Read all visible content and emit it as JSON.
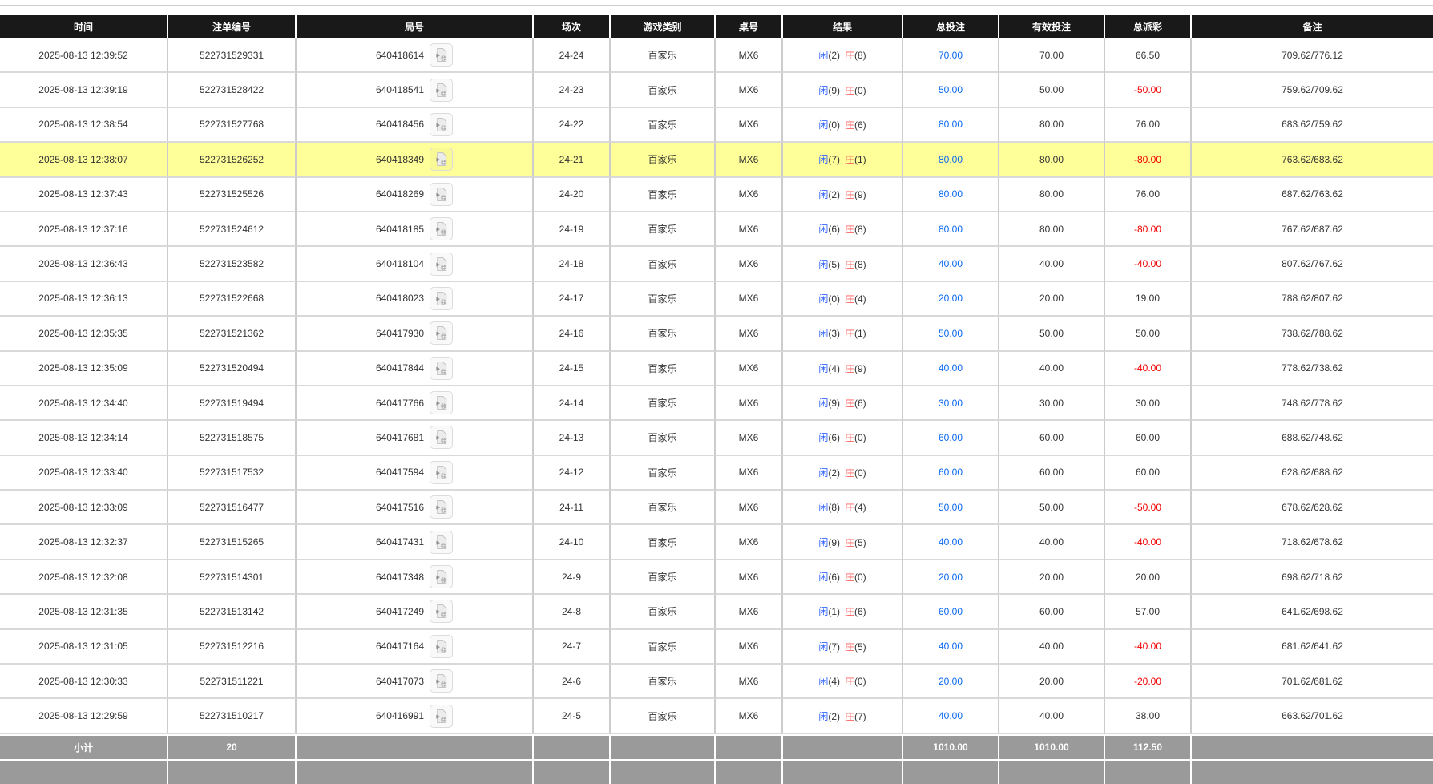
{
  "colors": {
    "header_bg": "#191919",
    "highlight_row_bg": "#ffff99",
    "subtotal_bg": "#9a9a9a",
    "bet_amount_blue": "#0a68f0",
    "player_label_blue": "#3366ff",
    "banker_label_red": "#ff5f5f",
    "negative_payout_red": "#f20000"
  },
  "icons": {
    "round_replay": "video-file-icon"
  },
  "table": {
    "columns": [
      {
        "key": "time",
        "label": "时间"
      },
      {
        "key": "bet_id",
        "label": "注单编号"
      },
      {
        "key": "round_id",
        "label": "局号"
      },
      {
        "key": "session",
        "label": "场次"
      },
      {
        "key": "game_type",
        "label": "游戏类别"
      },
      {
        "key": "table_no",
        "label": "桌号"
      },
      {
        "key": "result",
        "label": "结果"
      },
      {
        "key": "total_bet",
        "label": "总投注"
      },
      {
        "key": "valid_bet",
        "label": "有效投注"
      },
      {
        "key": "payout",
        "label": "总派彩"
      },
      {
        "key": "remark",
        "label": "备注"
      }
    ],
    "result_labels": {
      "player": "闲",
      "banker": "庄"
    },
    "rows": [
      {
        "time": "2025-08-13 12:39:52",
        "bet_id": "522731529331",
        "round_id": "640418614",
        "session": "24-24",
        "game_type": "百家乐",
        "table_no": "MX6",
        "player_score": "(2)",
        "banker_score": "(8)",
        "total_bet": "70.00",
        "valid_bet": "70.00",
        "payout": "66.50",
        "remark": "709.62/776.12",
        "highlighted": false
      },
      {
        "time": "2025-08-13 12:39:19",
        "bet_id": "522731528422",
        "round_id": "640418541",
        "session": "24-23",
        "game_type": "百家乐",
        "table_no": "MX6",
        "player_score": "(9)",
        "banker_score": "(0)",
        "total_bet": "50.00",
        "valid_bet": "50.00",
        "payout": "-50.00",
        "remark": "759.62/709.62",
        "highlighted": false
      },
      {
        "time": "2025-08-13 12:38:54",
        "bet_id": "522731527768",
        "round_id": "640418456",
        "session": "24-22",
        "game_type": "百家乐",
        "table_no": "MX6",
        "player_score": "(0)",
        "banker_score": "(6)",
        "total_bet": "80.00",
        "valid_bet": "80.00",
        "payout": "76.00",
        "remark": "683.62/759.62",
        "highlighted": false
      },
      {
        "time": "2025-08-13 12:38:07",
        "bet_id": "522731526252",
        "round_id": "640418349",
        "session": "24-21",
        "game_type": "百家乐",
        "table_no": "MX6",
        "player_score": "(7)",
        "banker_score": "(1)",
        "total_bet": "80.00",
        "valid_bet": "80.00",
        "payout": "-80.00",
        "remark": "763.62/683.62",
        "highlighted": true
      },
      {
        "time": "2025-08-13 12:37:43",
        "bet_id": "522731525526",
        "round_id": "640418269",
        "session": "24-20",
        "game_type": "百家乐",
        "table_no": "MX6",
        "player_score": "(2)",
        "banker_score": "(9)",
        "total_bet": "80.00",
        "valid_bet": "80.00",
        "payout": "76.00",
        "remark": "687.62/763.62",
        "highlighted": false
      },
      {
        "time": "2025-08-13 12:37:16",
        "bet_id": "522731524612",
        "round_id": "640418185",
        "session": "24-19",
        "game_type": "百家乐",
        "table_no": "MX6",
        "player_score": "(6)",
        "banker_score": "(8)",
        "total_bet": "80.00",
        "valid_bet": "80.00",
        "payout": "-80.00",
        "remark": "767.62/687.62",
        "highlighted": false
      },
      {
        "time": "2025-08-13 12:36:43",
        "bet_id": "522731523582",
        "round_id": "640418104",
        "session": "24-18",
        "game_type": "百家乐",
        "table_no": "MX6",
        "player_score": "(5)",
        "banker_score": "(8)",
        "total_bet": "40.00",
        "valid_bet": "40.00",
        "payout": "-40.00",
        "remark": "807.62/767.62",
        "highlighted": false
      },
      {
        "time": "2025-08-13 12:36:13",
        "bet_id": "522731522668",
        "round_id": "640418023",
        "session": "24-17",
        "game_type": "百家乐",
        "table_no": "MX6",
        "player_score": "(0)",
        "banker_score": "(4)",
        "total_bet": "20.00",
        "valid_bet": "20.00",
        "payout": "19.00",
        "remark": "788.62/807.62",
        "highlighted": false
      },
      {
        "time": "2025-08-13 12:35:35",
        "bet_id": "522731521362",
        "round_id": "640417930",
        "session": "24-16",
        "game_type": "百家乐",
        "table_no": "MX6",
        "player_score": "(3)",
        "banker_score": "(1)",
        "total_bet": "50.00",
        "valid_bet": "50.00",
        "payout": "50.00",
        "remark": "738.62/788.62",
        "highlighted": false
      },
      {
        "time": "2025-08-13 12:35:09",
        "bet_id": "522731520494",
        "round_id": "640417844",
        "session": "24-15",
        "game_type": "百家乐",
        "table_no": "MX6",
        "player_score": "(4)",
        "banker_score": "(9)",
        "total_bet": "40.00",
        "valid_bet": "40.00",
        "payout": "-40.00",
        "remark": "778.62/738.62",
        "highlighted": false
      },
      {
        "time": "2025-08-13 12:34:40",
        "bet_id": "522731519494",
        "round_id": "640417766",
        "session": "24-14",
        "game_type": "百家乐",
        "table_no": "MX6",
        "player_score": "(9)",
        "banker_score": "(6)",
        "total_bet": "30.00",
        "valid_bet": "30.00",
        "payout": "30.00",
        "remark": "748.62/778.62",
        "highlighted": false
      },
      {
        "time": "2025-08-13 12:34:14",
        "bet_id": "522731518575",
        "round_id": "640417681",
        "session": "24-13",
        "game_type": "百家乐",
        "table_no": "MX6",
        "player_score": "(6)",
        "banker_score": "(0)",
        "total_bet": "60.00",
        "valid_bet": "60.00",
        "payout": "60.00",
        "remark": "688.62/748.62",
        "highlighted": false
      },
      {
        "time": "2025-08-13 12:33:40",
        "bet_id": "522731517532",
        "round_id": "640417594",
        "session": "24-12",
        "game_type": "百家乐",
        "table_no": "MX6",
        "player_score": "(2)",
        "banker_score": "(0)",
        "total_bet": "60.00",
        "valid_bet": "60.00",
        "payout": "60.00",
        "remark": "628.62/688.62",
        "highlighted": false
      },
      {
        "time": "2025-08-13 12:33:09",
        "bet_id": "522731516477",
        "round_id": "640417516",
        "session": "24-11",
        "game_type": "百家乐",
        "table_no": "MX6",
        "player_score": "(8)",
        "banker_score": "(4)",
        "total_bet": "50.00",
        "valid_bet": "50.00",
        "payout": "-50.00",
        "remark": "678.62/628.62",
        "highlighted": false
      },
      {
        "time": "2025-08-13 12:32:37",
        "bet_id": "522731515265",
        "round_id": "640417431",
        "session": "24-10",
        "game_type": "百家乐",
        "table_no": "MX6",
        "player_score": "(9)",
        "banker_score": "(5)",
        "total_bet": "40.00",
        "valid_bet": "40.00",
        "payout": "-40.00",
        "remark": "718.62/678.62",
        "highlighted": false
      },
      {
        "time": "2025-08-13 12:32:08",
        "bet_id": "522731514301",
        "round_id": "640417348",
        "session": "24-9",
        "game_type": "百家乐",
        "table_no": "MX6",
        "player_score": "(6)",
        "banker_score": "(0)",
        "total_bet": "20.00",
        "valid_bet": "20.00",
        "payout": "20.00",
        "remark": "698.62/718.62",
        "highlighted": false
      },
      {
        "time": "2025-08-13 12:31:35",
        "bet_id": "522731513142",
        "round_id": "640417249",
        "session": "24-8",
        "game_type": "百家乐",
        "table_no": "MX6",
        "player_score": "(1)",
        "banker_score": "(6)",
        "total_bet": "60.00",
        "valid_bet": "60.00",
        "payout": "57.00",
        "remark": "641.62/698.62",
        "highlighted": false
      },
      {
        "time": "2025-08-13 12:31:05",
        "bet_id": "522731512216",
        "round_id": "640417164",
        "session": "24-7",
        "game_type": "百家乐",
        "table_no": "MX6",
        "player_score": "(7)",
        "banker_score": "(5)",
        "total_bet": "40.00",
        "valid_bet": "40.00",
        "payout": "-40.00",
        "remark": "681.62/641.62",
        "highlighted": false
      },
      {
        "time": "2025-08-13 12:30:33",
        "bet_id": "522731511221",
        "round_id": "640417073",
        "session": "24-6",
        "game_type": "百家乐",
        "table_no": "MX6",
        "player_score": "(4)",
        "banker_score": "(0)",
        "total_bet": "20.00",
        "valid_bet": "20.00",
        "payout": "-20.00",
        "remark": "701.62/681.62",
        "highlighted": false
      },
      {
        "time": "2025-08-13 12:29:59",
        "bet_id": "522731510217",
        "round_id": "640416991",
        "session": "24-5",
        "game_type": "百家乐",
        "table_no": "MX6",
        "player_score": "(2)",
        "banker_score": "(7)",
        "total_bet": "40.00",
        "valid_bet": "40.00",
        "payout": "38.00",
        "remark": "663.62/701.62",
        "highlighted": false
      }
    ],
    "subtotal": {
      "label": "小计",
      "count": "20",
      "total_bet": "1010.00",
      "valid_bet": "1010.00",
      "payout": "112.50"
    }
  }
}
